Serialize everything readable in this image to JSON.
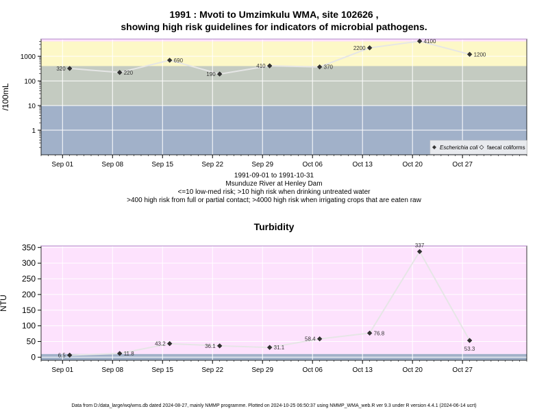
{
  "top_title_1": "1991 : Mvoti to Umzimkulu WMA, site 102626 ,",
  "top_title_2": "showing high risk guidelines for indicators of microbial pathogens.",
  "range_text": "1991-09-01 to 1991-10-31",
  "station_text": "Msunduze River at Henley Dam",
  "risk_text_1": "<=10 low-med risk; >10 high risk when drinking untreated water",
  "risk_text_2": ">400 high risk from full or partial contact; >4000 high risk when irrigating crops that are eaten raw",
  "footer": "Data from D:/data_large/wq/wms.db dated 2024-08-27, mainly NMMP programme. Plotted on 2024-10-25 06:50:37 using NMMP_WMA_web.R ver 9.3 under R version 4.4.1 (2024-06-14 ucrt)",
  "colors": {
    "band_low": "#a1b1c9",
    "band_mid": "#c4cbc1",
    "band_high": "#fdf8c7",
    "band_top": "#fde2fd",
    "turb_bg": "#fde2fd",
    "turb_band": "#a1b1c9",
    "line": "#e6e6e6",
    "point": "#333333"
  },
  "chart_data": [
    {
      "type": "line",
      "title": "",
      "ylabel": "/100mL",
      "yscale": "log",
      "ylim": [
        0.1,
        5000
      ],
      "yticks": [
        "1",
        "10",
        "100",
        "1000"
      ],
      "xticks": [
        "Sep 01",
        "Sep 08",
        "Sep 15",
        "Sep 22",
        "Sep 29",
        "Oct 06",
        "Oct 13",
        "Oct 20",
        "Oct 27"
      ],
      "xrange": [
        "1991-08-29",
        "1991-11-05"
      ],
      "thresholds": [
        10,
        400,
        4000
      ],
      "legend": {
        "position": "bottom-right",
        "entries": [
          "Escherichia coli",
          "faecal coliforms"
        ]
      },
      "series": [
        {
          "name": "Escherichia coli",
          "x": [
            "1991-09-02",
            "1991-09-09",
            "1991-09-16",
            "1991-09-23",
            "1991-09-30",
            "1991-10-07",
            "1991-10-14",
            "1991-10-21",
            "1991-10-28"
          ],
          "values": [
            320,
            220,
            690,
            190,
            410,
            370,
            2200,
            4100,
            1200
          ],
          "labels": [
            "320",
            "220",
            "690",
            "190",
            "410",
            "370",
            "2200",
            "4100",
            "1200"
          ],
          "label_side": [
            "left",
            "right",
            "right",
            "left",
            "left",
            "right",
            "left",
            "right",
            "right"
          ]
        }
      ]
    },
    {
      "type": "line",
      "title": "Turbidity",
      "ylabel": "NTU",
      "ylim": [
        -10,
        355
      ],
      "yticks": [
        "0",
        "50",
        "100",
        "150",
        "200",
        "250",
        "300",
        "350"
      ],
      "xticks": [
        "Sep 01",
        "Sep 08",
        "Sep 15",
        "Sep 22",
        "Sep 29",
        "Oct 06",
        "Oct 13",
        "Oct 20",
        "Oct 27"
      ],
      "xrange": [
        "1991-08-29",
        "1991-11-05"
      ],
      "series": [
        {
          "name": "",
          "x": [
            "1991-09-02",
            "1991-09-09",
            "1991-09-16",
            "1991-09-23",
            "1991-09-30",
            "1991-10-07",
            "1991-10-14",
            "1991-10-21",
            "1991-10-28"
          ],
          "values": [
            6.5,
            11.8,
            43.2,
            36.1,
            31.1,
            58.4,
            76.8,
            337,
            53.3
          ],
          "labels": [
            "6.5",
            "11.8",
            "43.2",
            "36.1",
            "31.1",
            "58.4",
            "76.8",
            "337",
            "53.3"
          ],
          "label_side": [
            "left",
            "right",
            "left",
            "left",
            "right",
            "left",
            "right",
            "above",
            "below"
          ]
        }
      ]
    }
  ]
}
